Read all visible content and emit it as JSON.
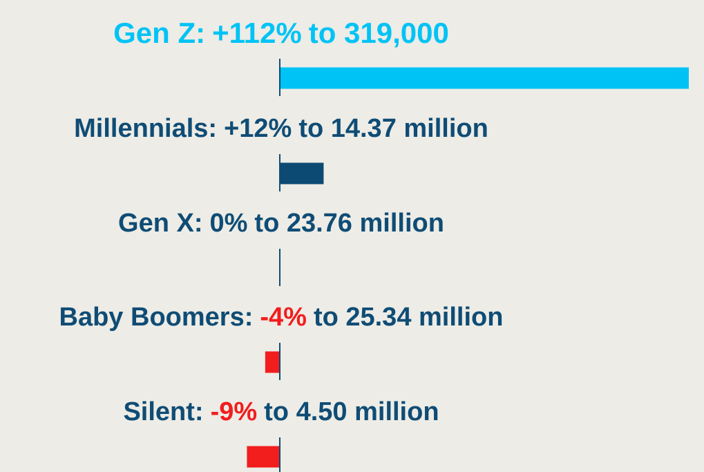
{
  "chart_data": {
    "type": "bar",
    "categories": [
      "Gen Z:",
      "Millennials:",
      "Gen X:",
      "Baby Boomers:",
      "Silent:"
    ],
    "values": [
      112,
      12,
      0,
      -4,
      -9
    ],
    "value_labels": [
      "+112%",
      "+12%",
      "0%",
      "-4%",
      "-9%"
    ],
    "annotations": [
      "to 319,000",
      "to 14.37 million",
      "to 23.76 million",
      "to 25.34 million",
      "to 4.50 million"
    ],
    "colors": [
      "#00c3f5",
      "#0d4a73",
      "#0d4a73",
      "#f21d1d",
      "#f21d1d"
    ],
    "text_colors": [
      "#00c3f5",
      "#0f4c75",
      "#0f4c75",
      "#0f4c75",
      "#0f4c75"
    ],
    "value_label_colors": [
      "#00c3f5",
      "#0f4c75",
      "#0f4c75",
      "#f21d1d",
      "#f21d1d"
    ]
  }
}
